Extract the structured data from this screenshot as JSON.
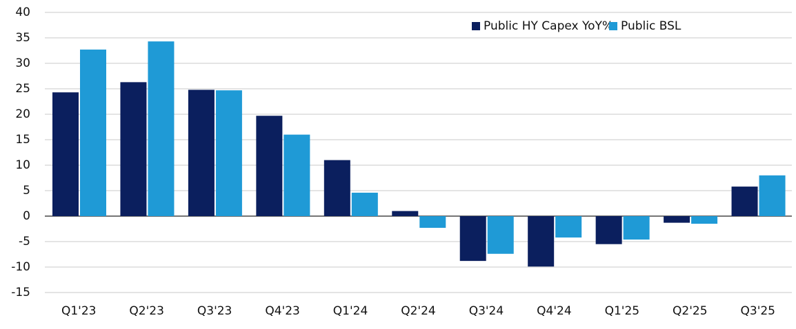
{
  "chart_data": {
    "type": "bar",
    "categories": [
      "Q1'23",
      "Q2'23",
      "Q3'23",
      "Q4'23",
      "Q1'24",
      "Q2'24",
      "Q3'24",
      "Q4'24",
      "Q1'25",
      "Q2'25",
      "Q3'25"
    ],
    "series": [
      {
        "name": "Public HY Capex YoY%",
        "color": "#0b1f5e",
        "values": [
          24.3,
          26.3,
          24.8,
          19.7,
          11.0,
          1.0,
          -8.8,
          -9.9,
          -5.5,
          -1.3,
          5.8
        ]
      },
      {
        "name": "Public BSL",
        "color": "#1f9ad6",
        "values": [
          32.7,
          34.3,
          24.7,
          16.0,
          4.6,
          -2.3,
          -7.4,
          -4.2,
          -4.6,
          -1.5,
          8.0
        ]
      }
    ],
    "ylim": [
      -15,
      40
    ],
    "yticks": [
      -15,
      -10,
      -5,
      0,
      5,
      10,
      15,
      20,
      25,
      30,
      35,
      40
    ],
    "grid": true,
    "legend": "top-right"
  }
}
